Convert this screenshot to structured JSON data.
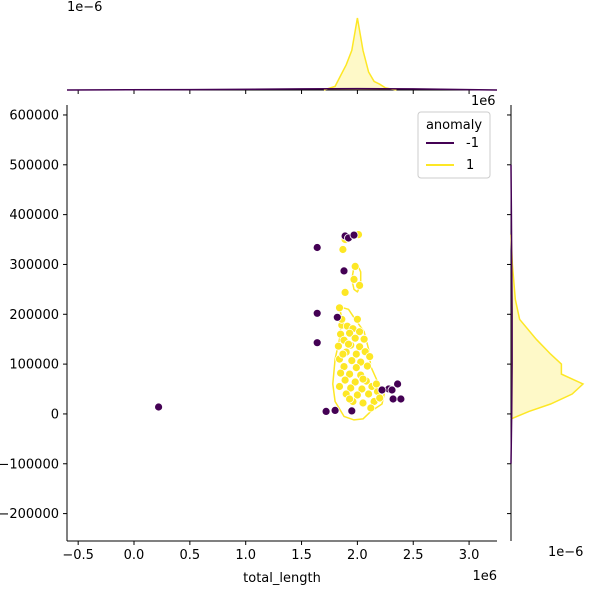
{
  "chart_data": {
    "type": "scatter",
    "title": "",
    "xlabel": "total_length",
    "ylabel": "",
    "x_offset_label": "1e6",
    "y_offset_label": "",
    "xlim": [
      -0.6,
      3.25
    ],
    "ylim": [
      -255000,
      620000
    ],
    "x_unit_scale": 1000000,
    "x_ticks": [
      -0.5,
      0.0,
      0.5,
      1.0,
      1.5,
      2.0,
      2.5,
      3.0
    ],
    "x_tick_labels": [
      "−0.5",
      "0.0",
      "0.5",
      "1.0",
      "1.5",
      "2.0",
      "2.5",
      "3.0"
    ],
    "y_ticks": [
      -200000,
      -100000,
      0,
      100000,
      200000,
      300000,
      400000,
      500000,
      600000
    ],
    "y_tick_labels": [
      "−200000",
      "−100000",
      "0",
      "100000",
      "200000",
      "300000",
      "400000",
      "500000",
      "600000"
    ],
    "grid": false,
    "legend": {
      "title": "anomaly",
      "placement": "top-right",
      "entries": [
        {
          "label": "-1",
          "color": "#440154"
        },
        {
          "label": "1",
          "color": "#fde725"
        }
      ]
    },
    "series": [
      {
        "name": "-1",
        "color": "#440154",
        "points": [
          [
            0.22,
            14000
          ],
          [
            1.64,
            334000
          ],
          [
            1.64,
            202000
          ],
          [
            1.64,
            143000
          ],
          [
            1.72,
            5000
          ],
          [
            1.8,
            7000
          ],
          [
            1.82,
            194000
          ],
          [
            1.88,
            287000
          ],
          [
            1.89,
            357000
          ],
          [
            1.92,
            353000
          ],
          [
            1.95,
            6000
          ],
          [
            1.97,
            359000
          ],
          [
            2.28,
            50000
          ],
          [
            2.31,
            48000
          ],
          [
            2.32,
            30000
          ],
          [
            2.36,
            60000
          ],
          [
            2.39,
            30000
          ],
          [
            2.22,
            48000
          ]
        ]
      },
      {
        "name": "1",
        "color": "#fde725",
        "points": [
          [
            1.89,
            350000
          ],
          [
            2.01,
            360000
          ],
          [
            1.87,
            330000
          ],
          [
            1.98,
            296000
          ],
          [
            1.97,
            270000
          ],
          [
            2.02,
            258000
          ],
          [
            1.89,
            244000
          ],
          [
            1.84,
            213000
          ],
          [
            1.86,
            178000
          ],
          [
            1.91,
            176000
          ],
          [
            1.96,
            171000
          ],
          [
            1.85,
            160000
          ],
          [
            1.93,
            162000
          ],
          [
            2.02,
            165000
          ],
          [
            1.88,
            148000
          ],
          [
            1.98,
            152000
          ],
          [
            2.06,
            150000
          ],
          [
            1.83,
            136000
          ],
          [
            1.94,
            138000
          ],
          [
            2.02,
            135000
          ],
          [
            1.9,
            124000
          ],
          [
            1.99,
            120000
          ],
          [
            2.07,
            125000
          ],
          [
            1.84,
            110000
          ],
          [
            1.95,
            107000
          ],
          [
            2.03,
            104000
          ],
          [
            1.88,
            95000
          ],
          [
            1.99,
            93000
          ],
          [
            2.09,
            96000
          ],
          [
            1.85,
            82000
          ],
          [
            1.93,
            80000
          ],
          [
            2.03,
            78000
          ],
          [
            1.89,
            68000
          ],
          [
            1.98,
            64000
          ],
          [
            2.08,
            66000
          ],
          [
            1.84,
            55000
          ],
          [
            1.94,
            52000
          ],
          [
            2.04,
            50000
          ],
          [
            2.13,
            55000
          ],
          [
            1.9,
            40000
          ],
          [
            2.0,
            38000
          ],
          [
            2.1,
            40000
          ],
          [
            2.18,
            45000
          ],
          [
            1.96,
            25000
          ],
          [
            2.05,
            22000
          ],
          [
            2.15,
            25000
          ],
          [
            2.2,
            32000
          ],
          [
            2.12,
            12000
          ],
          [
            1.86,
            190000
          ],
          [
            2.0,
            190000
          ],
          [
            1.92,
            140000
          ],
          [
            2.11,
            115000
          ],
          [
            1.87,
            120000
          ],
          [
            2.05,
            70000
          ],
          [
            2.17,
            60000
          ],
          [
            1.93,
            30000
          ]
        ]
      }
    ],
    "marginal_top": {
      "offset_label": "1e−6",
      "series": [
        {
          "name": "1",
          "color": "#fde725",
          "x": [
            1.7,
            1.8,
            1.85,
            1.9,
            1.95,
            2.0,
            2.05,
            2.1,
            2.15,
            2.2,
            2.25,
            2.35
          ],
          "density": [
            0.0,
            0.05,
            0.2,
            0.35,
            0.55,
            1.0,
            0.55,
            0.25,
            0.12,
            0.08,
            0.03,
            0.0
          ]
        },
        {
          "name": "-1",
          "color": "#440154",
          "x": [
            -0.6,
            0.5,
            1.5,
            2.0,
            2.5,
            3.25
          ],
          "density": [
            0.0,
            0.005,
            0.015,
            0.02,
            0.015,
            0.0
          ]
        }
      ]
    },
    "marginal_right": {
      "offset_label": "1e−6",
      "series": [
        {
          "name": "1",
          "color": "#fde725",
          "y": [
            -10000,
            5000,
            20000,
            40000,
            60000,
            80000,
            100000,
            120000,
            150000,
            190000,
            230000,
            300000,
            360000
          ],
          "density": [
            0.0,
            0.25,
            0.55,
            0.85,
            1.0,
            0.7,
            0.7,
            0.55,
            0.35,
            0.12,
            0.06,
            0.02,
            0.0
          ]
        },
        {
          "name": "-1",
          "color": "#440154",
          "y": [
            -100000,
            0,
            100000,
            200000,
            300000,
            400000,
            500000
          ],
          "density": [
            0.0,
            0.01,
            0.015,
            0.015,
            0.01,
            0.005,
            0.0
          ]
        }
      ]
    },
    "contour_note": "KDE contour of anomaly=1 points shown around dense cluster"
  }
}
